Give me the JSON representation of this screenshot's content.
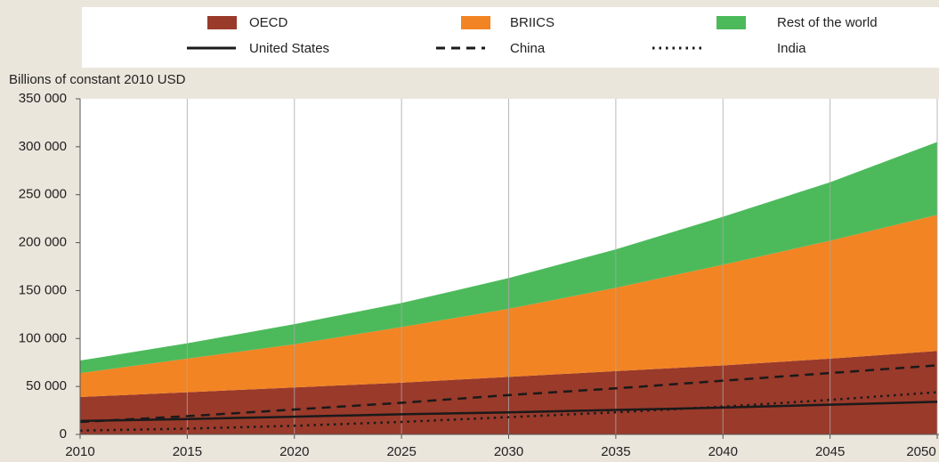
{
  "chart_data": {
    "type": "area",
    "y_label": "Billions of constant 2010 USD",
    "x": [
      2010,
      2015,
      2020,
      2025,
      2030,
      2035,
      2040,
      2045,
      2050
    ],
    "xlim": [
      2010,
      2050
    ],
    "xticks": [
      2010,
      2015,
      2020,
      2025,
      2030,
      2035,
      2040,
      2045,
      2050
    ],
    "ylim": [
      0,
      350000
    ],
    "yticks": [
      0,
      {
        "value": 50000,
        "label": "50 000"
      },
      {
        "value": 100000,
        "label": "100 000"
      },
      {
        "value": 150000,
        "label": "150 000"
      },
      {
        "value": 200000,
        "label": "200 000"
      },
      {
        "value": 250000,
        "label": "250 000"
      },
      {
        "value": 300000,
        "label": "300 000"
      },
      {
        "value": 350000,
        "label": "350 000"
      }
    ],
    "grid": "x",
    "series": [
      {
        "name": "OECD",
        "kind": "stacked-area",
        "color": "#9a3a2b",
        "values": [
          39000,
          44000,
          49000,
          54000,
          60000,
          66000,
          72000,
          79000,
          87000
        ]
      },
      {
        "name": "BRIICS",
        "kind": "stacked-area",
        "color": "#f28423",
        "values": [
          25000,
          35000,
          45000,
          58000,
          71000,
          87000,
          105000,
          123000,
          142000
        ]
      },
      {
        "name": "Rest of the world",
        "kind": "stacked-area",
        "color": "#4cba5b",
        "values": [
          13000,
          16000,
          21000,
          25000,
          32000,
          40000,
          50000,
          61000,
          76000
        ]
      },
      {
        "name": "United States",
        "kind": "line",
        "color": "#1a1a1a",
        "dash": "solid",
        "values": [
          14000,
          16000,
          18500,
          21000,
          23000,
          25500,
          28000,
          31000,
          34000
        ]
      },
      {
        "name": "China",
        "kind": "line",
        "color": "#1a1a1a",
        "dash": "dashed",
        "values": [
          13000,
          19000,
          26000,
          33000,
          41000,
          48000,
          56000,
          64000,
          72000
        ]
      },
      {
        "name": "India",
        "kind": "line",
        "color": "#1a1a1a",
        "dash": "dotted",
        "values": [
          4000,
          6000,
          9000,
          13000,
          18000,
          23000,
          29000,
          36000,
          44000
        ]
      }
    ]
  }
}
